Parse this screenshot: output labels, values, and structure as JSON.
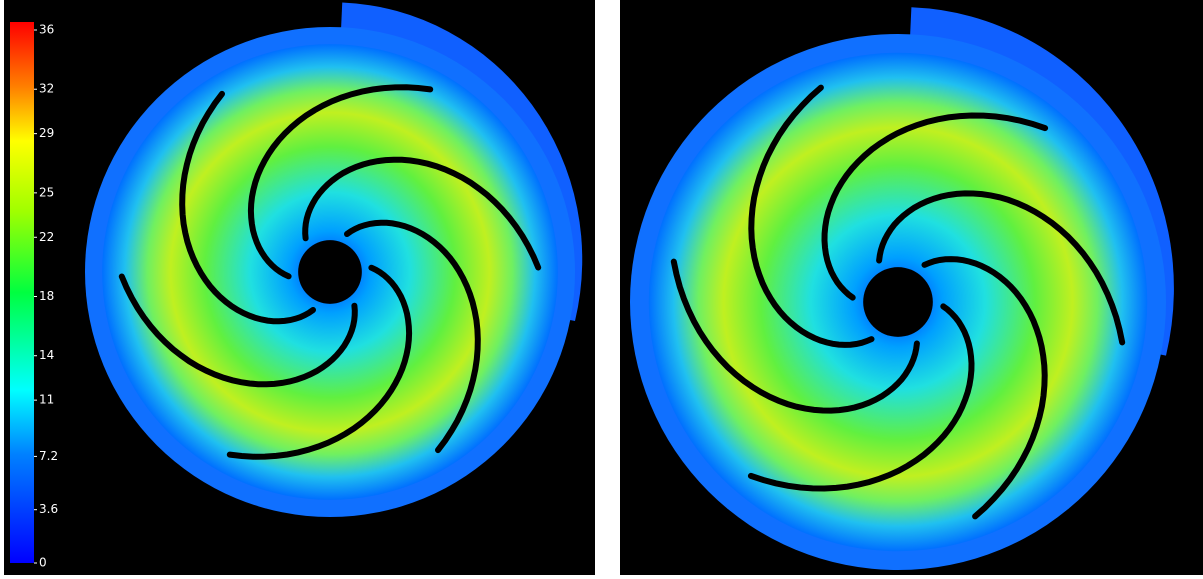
{
  "colorbar": {
    "range": [
      0,
      36
    ],
    "ticks": [
      0,
      3.6,
      7.2,
      11,
      14,
      18,
      22,
      25,
      29,
      32,
      36
    ]
  }
}
